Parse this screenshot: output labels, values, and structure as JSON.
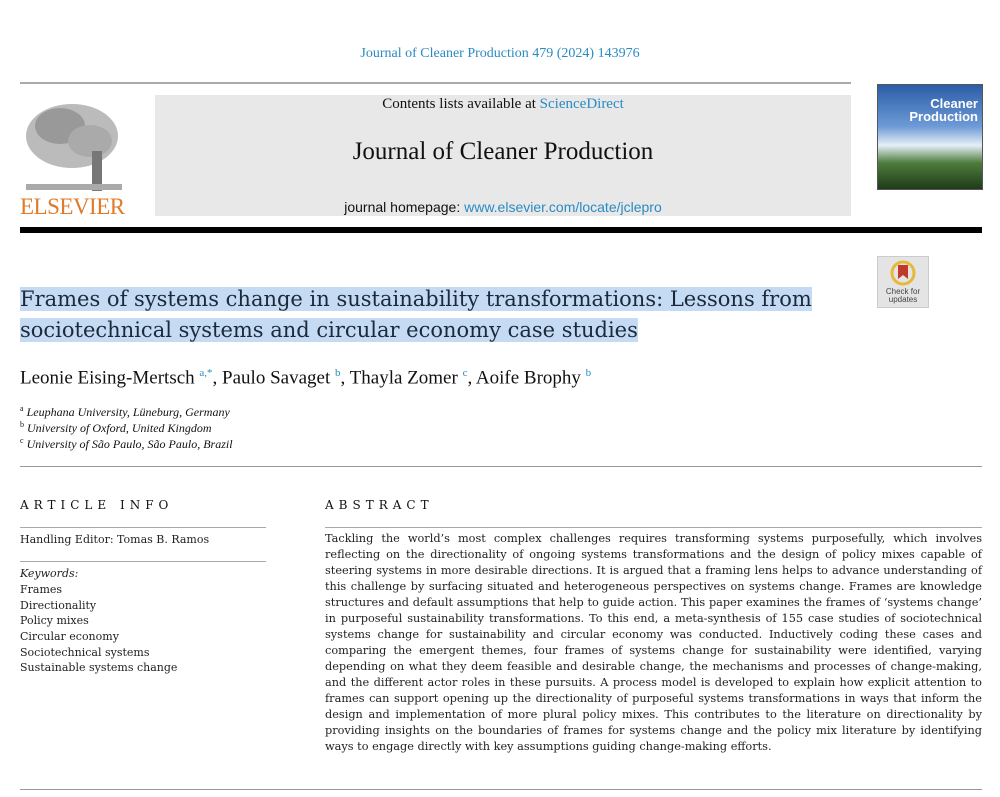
{
  "header": {
    "citation": "Journal of Cleaner Production 479 (2024) 143976",
    "contents_prefix": "Contents lists available at ",
    "contents_link": "ScienceDirect",
    "journal_name": "Journal of Cleaner Production",
    "homepage_prefix": "journal homepage: ",
    "homepage_link": "www.elsevier.com/locate/jclepro",
    "publisher_logo": "ELSEVIER",
    "cover_title": "Cleaner Production",
    "check_updates": "Check for updates"
  },
  "article": {
    "title_lines": [
      "Frames of systems change in sustainability transformations: Lessons from",
      "sociotechnical systems and circular economy case studies"
    ],
    "authors": [
      {
        "name": "Leonie Eising-Mertsch",
        "sup": "a,*"
      },
      {
        "name": "Paulo Savaget",
        "sup": "b"
      },
      {
        "name": "Thayla Zomer",
        "sup": "c"
      },
      {
        "name": "Aoife Brophy",
        "sup": "b"
      }
    ],
    "affiliations": [
      {
        "sup": "a",
        "text": "Leuphana University, Lüneburg, Germany"
      },
      {
        "sup": "b",
        "text": "University of Oxford, United Kingdom"
      },
      {
        "sup": "c",
        "text": "University of São Paulo, São Paulo, Brazil"
      }
    ]
  },
  "article_info": {
    "heading": "ARTICLE INFO",
    "handling_editor": "Handling Editor: Tomas B. Ramos",
    "keywords_label": "Keywords:",
    "keywords": [
      "Frames",
      "Directionality",
      "Policy mixes",
      "Circular economy",
      "Sociotechnical systems",
      "Sustainable systems change"
    ]
  },
  "abstract": {
    "heading": "ABSTRACT",
    "lines": [
      "Tackling the world’s most complex challenges requires transforming systems purposefully, which involves",
      "reflecting on the directionality of ongoing systems transformations and the design of policy mixes capable of",
      "steering systems in more desirable directions. It is argued that a framing lens helps to advance understanding of",
      "this challenge by surfacing situated and heterogeneous perspectives on systems change. Frames are knowledge",
      "structures and default assumptions that help to guide action. This paper examines the frames of ‘systems change’",
      "in purposeful sustainability transformations. To this end, a meta-synthesis of 155 case studies of sociotechnical",
      "systems change for sustainability and circular economy was conducted. Inductively coding these cases and",
      "comparing the emergent themes, four frames of systems change for sustainability were identified, varying",
      "depending on what they deem feasible and desirable change, the mechanisms and processes of change-making,",
      "and the different actor roles in these pursuits. A process model is developed to explain how explicit attention to",
      "frames can support opening up the directionality of purposeful systems transformations in ways that inform the",
      "design and implementation of more plural policy mixes. This contributes to the literature on directionality by",
      "providing insights on the boundaries of frames for systems change and the policy mix literature by identifying",
      "ways to engage directly with key assumptions guiding change-making efforts."
    ]
  },
  "colors": {
    "link": "#2a8bc2",
    "elsevier_orange": "#e07b2a",
    "title_highlight": "#c5daf3"
  }
}
